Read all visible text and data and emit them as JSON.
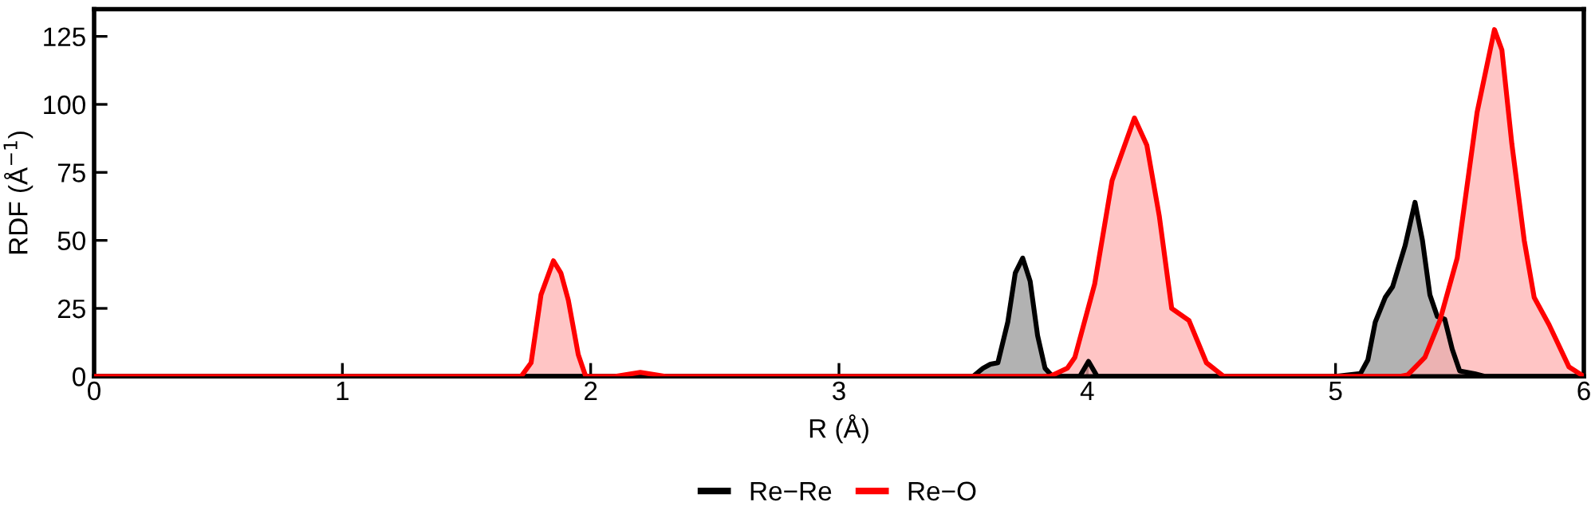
{
  "chart_data": {
    "type": "area",
    "xlabel": "R (Å)",
    "ylabel": "RDF (Å$^{−1}$)",
    "xlim": [
      0,
      6
    ],
    "xticks": [
      0,
      1,
      2,
      3,
      4,
      5,
      6
    ],
    "ylim": [
      0,
      135
    ],
    "yticks": [
      0,
      25,
      50,
      75,
      100,
      125
    ],
    "grid": false,
    "legend": "bottom",
    "series": [
      {
        "name": "Re−Re",
        "color": "#000000",
        "x": [
          0,
          3.54,
          3.58,
          3.61,
          3.64,
          3.68,
          3.71,
          3.74,
          3.77,
          3.8,
          3.83,
          3.86,
          3.97,
          4.005,
          4.04,
          5.0,
          5.1,
          5.13,
          5.16,
          5.2,
          5.23,
          5.28,
          5.32,
          5.35,
          5.38,
          5.41,
          5.44,
          5.47,
          5.5,
          5.56,
          5.6,
          6
        ],
        "values": [
          0,
          0,
          3,
          4.5,
          5,
          20,
          38,
          43.5,
          35,
          15,
          3,
          0,
          0,
          5.5,
          0,
          0,
          1,
          6,
          20,
          29,
          33,
          48,
          64,
          50,
          30,
          22,
          21,
          10,
          2,
          1,
          0,
          0
        ]
      },
      {
        "name": "Re−O",
        "color": "#ff0000",
        "x": [
          0,
          1.72,
          1.76,
          1.8,
          1.85,
          1.88,
          1.91,
          1.95,
          1.98,
          2.1,
          2.2,
          2.3,
          3.85,
          3.92,
          3.95,
          4.03,
          4.1,
          4.19,
          4.24,
          4.29,
          4.34,
          4.41,
          4.48,
          4.55,
          5.26,
          5.29,
          5.36,
          5.42,
          5.49,
          5.57,
          5.64,
          5.67,
          5.71,
          5.76,
          5.8,
          5.86,
          5.94,
          6
        ],
        "values": [
          0,
          0,
          5,
          30,
          42.5,
          38,
          28,
          8,
          0,
          0,
          1.5,
          0,
          0,
          3,
          7,
          34,
          72,
          95,
          85,
          59,
          25,
          20.5,
          5,
          0,
          0,
          0.5,
          7,
          20.5,
          43.5,
          97,
          127.5,
          120,
          85.5,
          50,
          29,
          19,
          3.5,
          0
        ]
      }
    ]
  }
}
